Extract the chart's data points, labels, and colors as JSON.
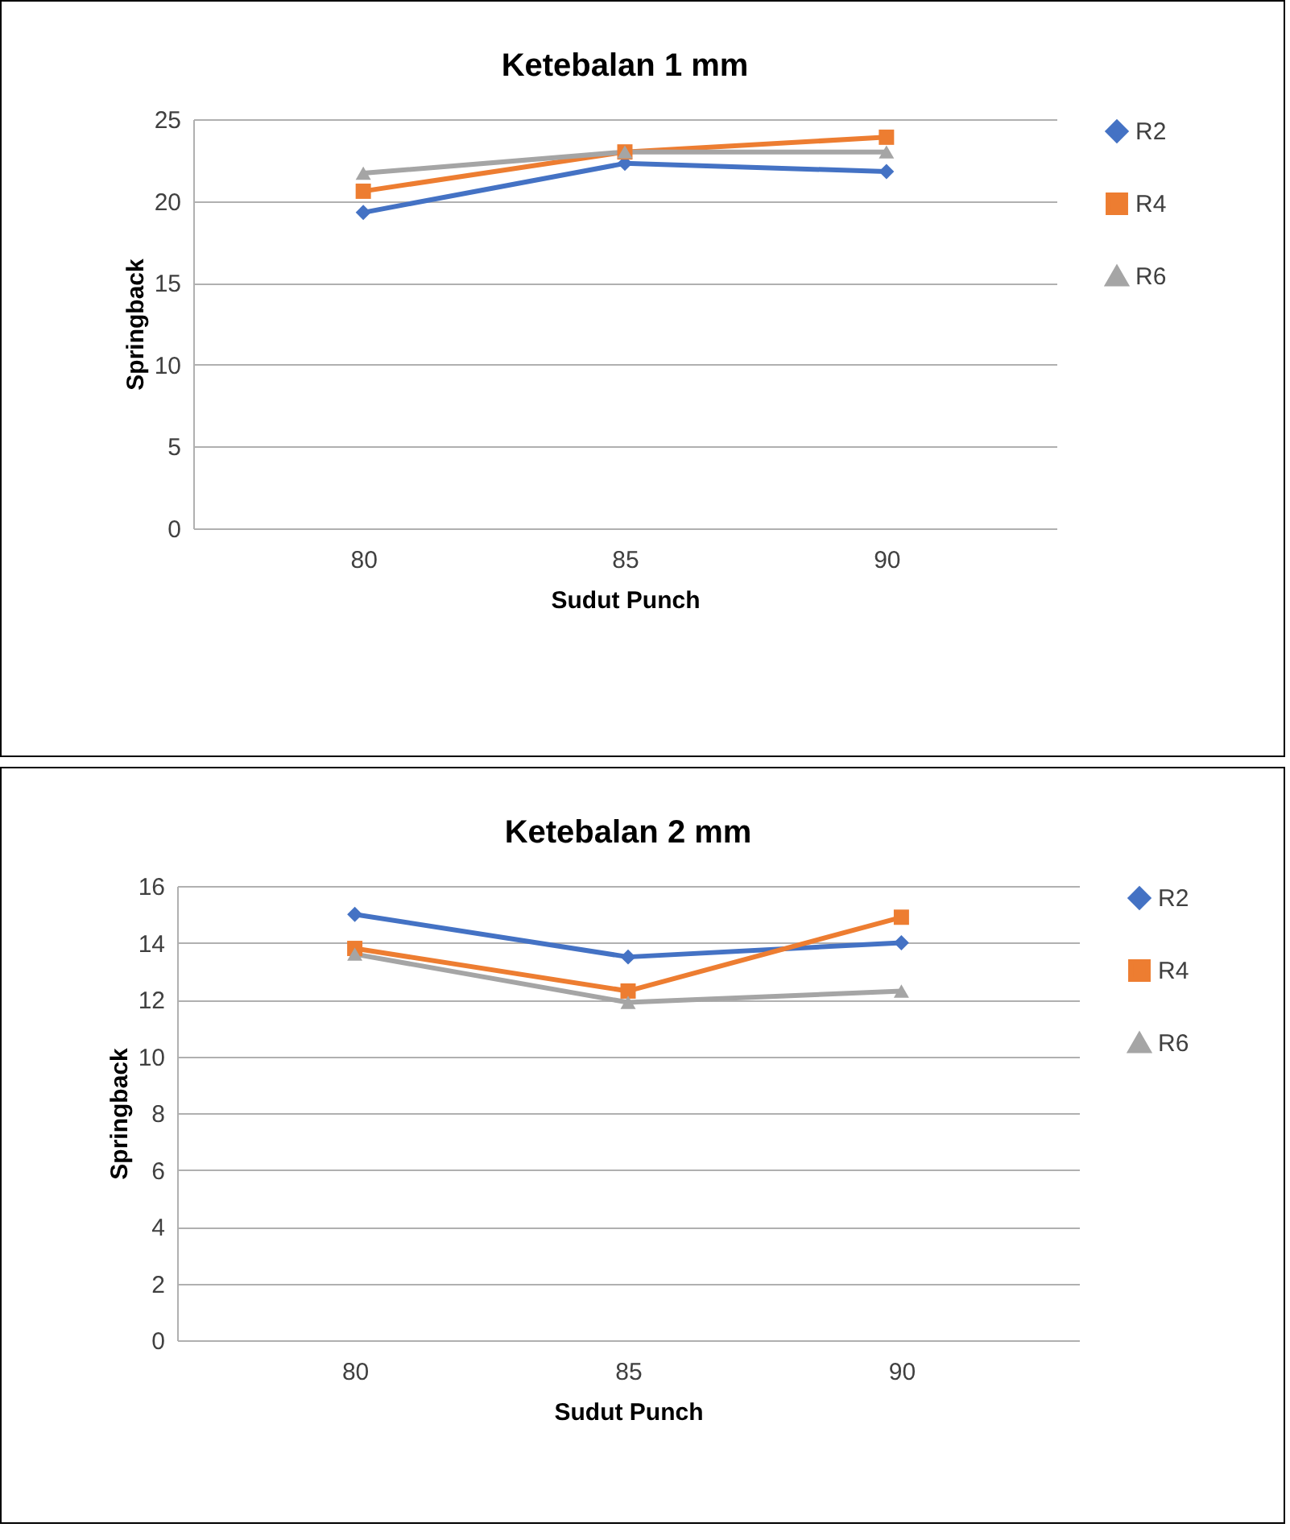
{
  "chart_data": [
    {
      "type": "line",
      "title": "Ketebalan 1 mm",
      "xlabel": "Sudut Punch",
      "ylabel": "Springback",
      "categories": [
        "80",
        "85",
        "90"
      ],
      "ylim": [
        0,
        25
      ],
      "yticks": [
        0,
        5,
        10,
        15,
        20,
        25
      ],
      "grid": "y",
      "legend": "right",
      "series": [
        {
          "name": "R2",
          "color": "#4472c4",
          "marker": "diamond",
          "values": [
            19.3,
            22.3,
            21.8
          ]
        },
        {
          "name": "R4",
          "color": "#ed7d31",
          "marker": "square",
          "values": [
            20.6,
            23.0,
            23.9
          ]
        },
        {
          "name": "R6",
          "color": "#a5a5a5",
          "marker": "triangle",
          "values": [
            21.7,
            23.0,
            23.0
          ]
        }
      ]
    },
    {
      "type": "line",
      "title": "Ketebalan 2 mm",
      "xlabel": "Sudut Punch",
      "ylabel": "Springback",
      "categories": [
        "80",
        "85",
        "90"
      ],
      "ylim": [
        0,
        16
      ],
      "yticks": [
        0,
        2,
        4,
        6,
        8,
        10,
        12,
        14,
        16
      ],
      "grid": "y",
      "legend": "right",
      "series": [
        {
          "name": "R2",
          "color": "#4472c4",
          "marker": "diamond",
          "values": [
            15.0,
            13.5,
            14.0
          ]
        },
        {
          "name": "R4",
          "color": "#ed7d31",
          "marker": "square",
          "values": [
            13.8,
            12.3,
            14.9
          ]
        },
        {
          "name": "R6",
          "color": "#a5a5a5",
          "marker": "triangle",
          "values": [
            13.6,
            11.9,
            12.3
          ]
        }
      ]
    }
  ]
}
